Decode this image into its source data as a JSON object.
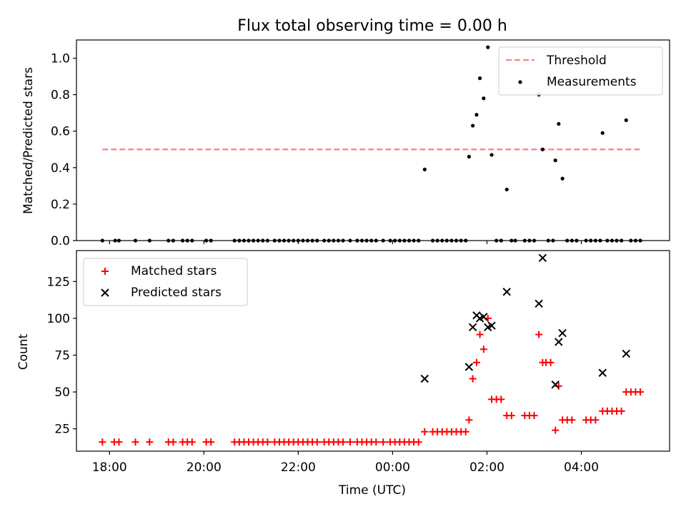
{
  "chart_data": [
    {
      "type": "scatter",
      "title": "Flux total observing time = 0.00 h",
      "ylabel": "Matched/Predicted stars",
      "xlim_hours": [
        17.3,
        29.87
      ],
      "ylim": [
        0,
        1.1
      ],
      "yticks": [
        0.0,
        0.2,
        0.4,
        0.6,
        0.8,
        1.0
      ],
      "ytick_labels": [
        "0.0",
        "0.2",
        "0.4",
        "0.6",
        "0.8",
        "1.0"
      ],
      "legend_position": "top-right",
      "threshold": {
        "name": "Threshold",
        "value": 0.5,
        "x_range_hours": [
          17.85,
          29.25
        ],
        "color": "#ff7f7f"
      },
      "measurements": {
        "name": "Measurements",
        "color": "#000000",
        "points": [
          [
            17.85,
            0
          ],
          [
            18.12,
            0
          ],
          [
            18.2,
            0
          ],
          [
            18.55,
            0
          ],
          [
            18.85,
            0
          ],
          [
            19.25,
            0
          ],
          [
            19.35,
            0
          ],
          [
            19.55,
            0
          ],
          [
            19.65,
            0
          ],
          [
            19.75,
            0
          ],
          [
            20.05,
            0
          ],
          [
            20.15,
            0
          ],
          [
            20.65,
            0
          ],
          [
            20.75,
            0
          ],
          [
            20.85,
            0
          ],
          [
            20.95,
            0
          ],
          [
            21.05,
            0
          ],
          [
            21.15,
            0
          ],
          [
            21.25,
            0
          ],
          [
            21.35,
            0
          ],
          [
            21.5,
            0
          ],
          [
            21.6,
            0
          ],
          [
            21.7,
            0
          ],
          [
            21.8,
            0
          ],
          [
            21.9,
            0
          ],
          [
            22.0,
            0
          ],
          [
            22.1,
            0
          ],
          [
            22.2,
            0
          ],
          [
            22.3,
            0
          ],
          [
            22.4,
            0
          ],
          [
            22.55,
            0
          ],
          [
            22.65,
            0
          ],
          [
            22.75,
            0
          ],
          [
            22.85,
            0
          ],
          [
            22.95,
            0
          ],
          [
            23.1,
            0
          ],
          [
            23.25,
            0
          ],
          [
            23.35,
            0
          ],
          [
            23.45,
            0
          ],
          [
            23.55,
            0
          ],
          [
            23.65,
            0
          ],
          [
            23.8,
            0
          ],
          [
            23.95,
            0
          ],
          [
            24.05,
            0
          ],
          [
            24.15,
            0
          ],
          [
            24.25,
            0
          ],
          [
            24.35,
            0
          ],
          [
            24.45,
            0
          ],
          [
            24.55,
            0
          ],
          [
            24.68,
            0.39
          ],
          [
            24.85,
            0
          ],
          [
            24.95,
            0
          ],
          [
            25.05,
            0
          ],
          [
            25.15,
            0
          ],
          [
            25.25,
            0
          ],
          [
            25.35,
            0
          ],
          [
            25.45,
            0
          ],
          [
            25.55,
            0
          ],
          [
            25.62,
            0.46
          ],
          [
            25.7,
            0.63
          ],
          [
            25.78,
            0.69
          ],
          [
            25.85,
            0.89
          ],
          [
            25.93,
            0.78
          ],
          [
            26.02,
            1.06
          ],
          [
            26.1,
            0.47
          ],
          [
            26.2,
            0
          ],
          [
            26.3,
            0
          ],
          [
            26.42,
            0.28
          ],
          [
            26.52,
            0
          ],
          [
            26.6,
            0
          ],
          [
            26.8,
            0
          ],
          [
            26.9,
            0
          ],
          [
            27.0,
            0
          ],
          [
            27.1,
            0.8
          ],
          [
            27.18,
            0.5
          ],
          [
            27.3,
            0
          ],
          [
            27.4,
            0
          ],
          [
            27.45,
            0.44
          ],
          [
            27.52,
            0.64
          ],
          [
            27.6,
            0.34
          ],
          [
            27.7,
            0
          ],
          [
            27.8,
            0
          ],
          [
            27.9,
            0
          ],
          [
            28.1,
            0
          ],
          [
            28.2,
            0
          ],
          [
            28.3,
            0
          ],
          [
            28.4,
            0
          ],
          [
            28.45,
            0.59
          ],
          [
            28.55,
            0
          ],
          [
            28.65,
            0
          ],
          [
            28.75,
            0
          ],
          [
            28.85,
            0
          ],
          [
            28.95,
            0.66
          ],
          [
            29.05,
            0
          ],
          [
            29.15,
            0
          ],
          [
            29.25,
            0
          ]
        ]
      }
    },
    {
      "type": "scatter",
      "xlabel": "Time (UTC)",
      "ylabel": "Count",
      "xlim_hours": [
        17.3,
        29.87
      ],
      "xticks_hours": [
        18,
        20,
        22,
        24,
        26,
        28
      ],
      "xtick_labels": [
        "18:00",
        "20:00",
        "22:00",
        "00:00",
        "02:00",
        "04:00"
      ],
      "ylim": [
        9.8,
        146
      ],
      "yticks": [
        25,
        50,
        75,
        100,
        125
      ],
      "ytick_labels": [
        "25",
        "50",
        "75",
        "100",
        "125"
      ],
      "legend_position": "top-left",
      "series": [
        {
          "name": "Matched stars",
          "marker": "plus",
          "color": "#ff0000",
          "points": [
            [
              17.85,
              16
            ],
            [
              18.1,
              16
            ],
            [
              18.2,
              16
            ],
            [
              18.55,
              16
            ],
            [
              18.85,
              16
            ],
            [
              19.25,
              16
            ],
            [
              19.35,
              16
            ],
            [
              19.55,
              16
            ],
            [
              19.65,
              16
            ],
            [
              19.75,
              16
            ],
            [
              20.05,
              16
            ],
            [
              20.15,
              16
            ],
            [
              20.65,
              16
            ],
            [
              20.75,
              16
            ],
            [
              20.85,
              16
            ],
            [
              20.95,
              16
            ],
            [
              21.05,
              16
            ],
            [
              21.15,
              16
            ],
            [
              21.25,
              16
            ],
            [
              21.35,
              16
            ],
            [
              21.5,
              16
            ],
            [
              21.6,
              16
            ],
            [
              21.7,
              16
            ],
            [
              21.8,
              16
            ],
            [
              21.9,
              16
            ],
            [
              22.0,
              16
            ],
            [
              22.1,
              16
            ],
            [
              22.2,
              16
            ],
            [
              22.3,
              16
            ],
            [
              22.4,
              16
            ],
            [
              22.55,
              16
            ],
            [
              22.65,
              16
            ],
            [
              22.75,
              16
            ],
            [
              22.85,
              16
            ],
            [
              22.95,
              16
            ],
            [
              23.1,
              16
            ],
            [
              23.25,
              16
            ],
            [
              23.35,
              16
            ],
            [
              23.45,
              16
            ],
            [
              23.55,
              16
            ],
            [
              23.65,
              16
            ],
            [
              23.8,
              16
            ],
            [
              23.95,
              16
            ],
            [
              24.05,
              16
            ],
            [
              24.15,
              16
            ],
            [
              24.25,
              16
            ],
            [
              24.35,
              16
            ],
            [
              24.45,
              16
            ],
            [
              24.55,
              16
            ],
            [
              24.68,
              23
            ],
            [
              24.85,
              23
            ],
            [
              24.95,
              23
            ],
            [
              25.05,
              23
            ],
            [
              25.15,
              23
            ],
            [
              25.25,
              23
            ],
            [
              25.35,
              23
            ],
            [
              25.45,
              23
            ],
            [
              25.55,
              23
            ],
            [
              25.62,
              31
            ],
            [
              25.7,
              59
            ],
            [
              25.78,
              70
            ],
            [
              25.85,
              89
            ],
            [
              25.93,
              79
            ],
            [
              26.02,
              100
            ],
            [
              26.1,
              45
            ],
            [
              26.2,
              45
            ],
            [
              26.3,
              45
            ],
            [
              26.42,
              34
            ],
            [
              26.52,
              34
            ],
            [
              26.8,
              34
            ],
            [
              26.9,
              34
            ],
            [
              27.0,
              34
            ],
            [
              27.1,
              89
            ],
            [
              27.18,
              70
            ],
            [
              27.25,
              70
            ],
            [
              27.35,
              70
            ],
            [
              27.45,
              24
            ],
            [
              27.52,
              54
            ],
            [
              27.6,
              31
            ],
            [
              27.7,
              31
            ],
            [
              27.8,
              31
            ],
            [
              28.1,
              31
            ],
            [
              28.2,
              31
            ],
            [
              28.3,
              31
            ],
            [
              28.45,
              37
            ],
            [
              28.55,
              37
            ],
            [
              28.65,
              37
            ],
            [
              28.75,
              37
            ],
            [
              28.85,
              37
            ],
            [
              28.95,
              50
            ],
            [
              29.05,
              50
            ],
            [
              29.15,
              50
            ],
            [
              29.25,
              50
            ]
          ]
        },
        {
          "name": "Predicted stars",
          "marker": "x",
          "color": "#000000",
          "points": [
            [
              24.68,
              59
            ],
            [
              25.62,
              67
            ],
            [
              25.7,
              94
            ],
            [
              25.78,
              102
            ],
            [
              25.85,
              100
            ],
            [
              25.93,
              101
            ],
            [
              26.02,
              94
            ],
            [
              26.1,
              95
            ],
            [
              26.42,
              118
            ],
            [
              27.1,
              110
            ],
            [
              27.18,
              141
            ],
            [
              27.45,
              55
            ],
            [
              27.52,
              84
            ],
            [
              27.6,
              90
            ],
            [
              28.45,
              63
            ],
            [
              28.95,
              76
            ]
          ]
        }
      ]
    }
  ]
}
